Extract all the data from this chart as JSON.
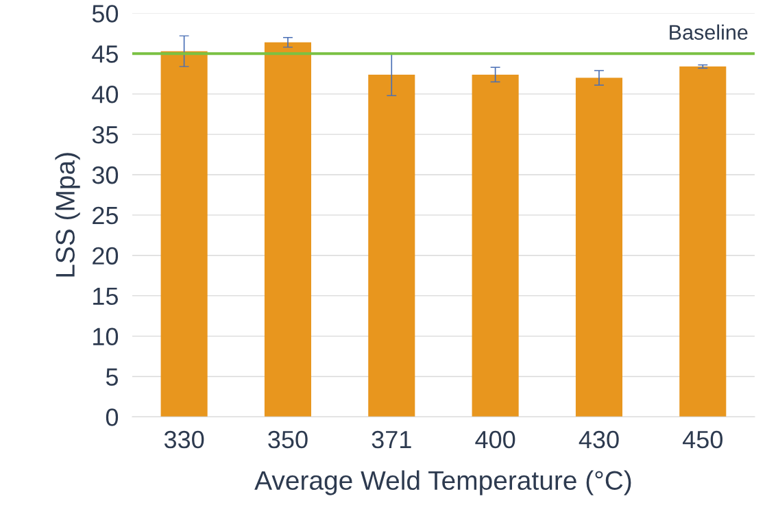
{
  "chart_data": {
    "type": "bar",
    "xlabel": "Average Weld Temperature (°C)",
    "ylabel": "LSS (Mpa)",
    "categories": [
      "330",
      "350",
      "371",
      "400",
      "430",
      "450"
    ],
    "values": [
      45.3,
      46.4,
      42.4,
      42.4,
      42.0,
      43.4
    ],
    "errors": [
      1.9,
      0.6,
      2.6,
      0.9,
      0.9,
      0.2
    ],
    "color": "#e8961e",
    "ylim": [
      0,
      50
    ],
    "yticks": [
      0,
      5,
      10,
      15,
      20,
      25,
      30,
      35,
      40,
      45,
      50
    ],
    "grid": "y",
    "ref_lines": [
      {
        "axis": "y",
        "value": 45,
        "label": "Baseline",
        "color": "#7ac143"
      }
    ]
  }
}
